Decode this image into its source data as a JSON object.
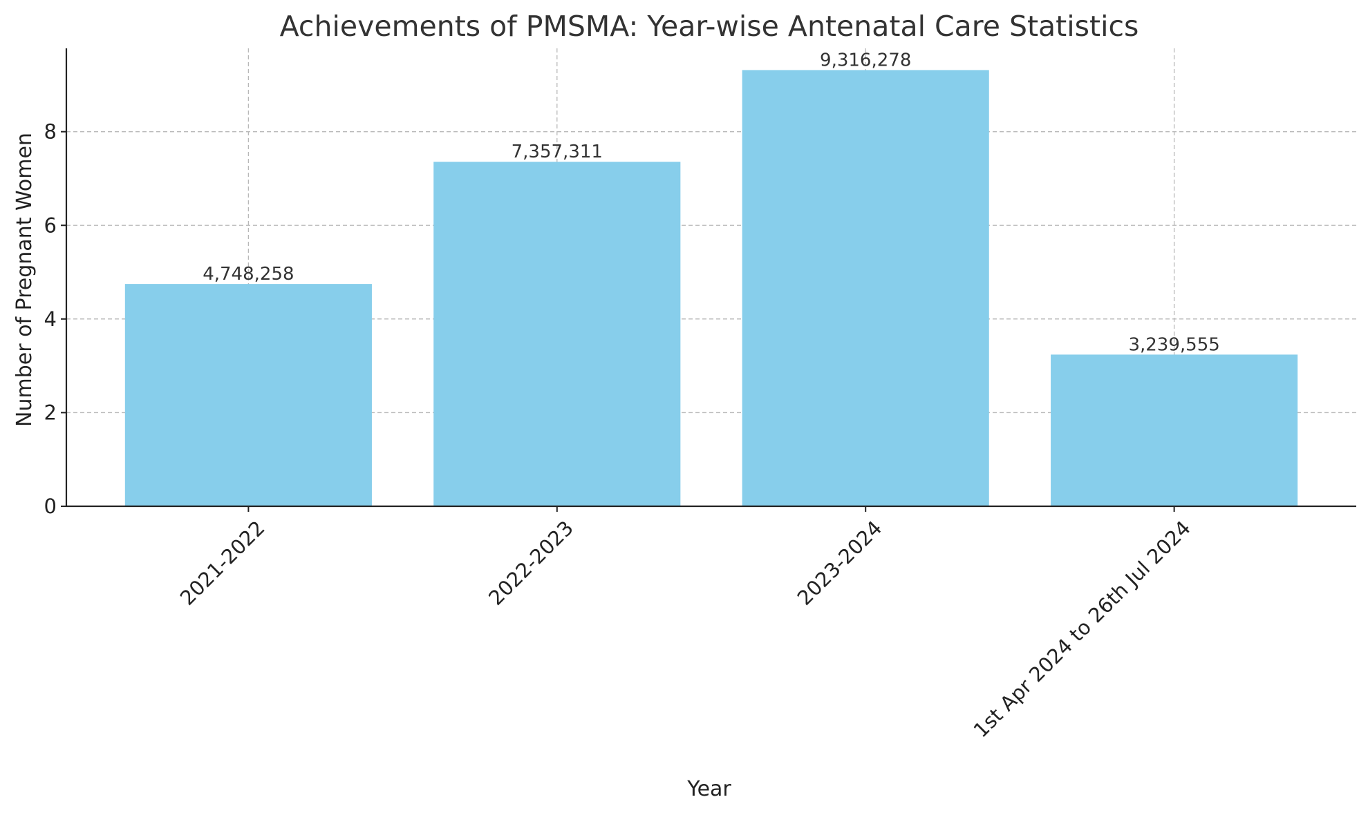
{
  "chart_data": {
    "type": "bar",
    "title": "Achievements of PMSMA: Year-wise Antenatal Care Statistics",
    "xlabel": "Year",
    "ylabel": "Number of Pregnant Women",
    "categories": [
      "2021-2022",
      "2022-2023",
      "2023-2024",
      "1st Apr 2024 to 26th Jul 2024"
    ],
    "values": [
      4748258,
      7357311,
      9316278,
      3239555
    ],
    "value_labels": [
      "4,748,258",
      "7,357,311",
      "9,316,278",
      "3,239,555"
    ],
    "y_scale_divisor": 1000000,
    "ylim": [
      0,
      9.78
    ],
    "yticks": [
      0,
      2,
      4,
      6,
      8
    ],
    "ytick_labels": [
      "0",
      "2",
      "4",
      "6",
      "8"
    ],
    "grid": true,
    "bar_color": "#87CEEB"
  }
}
